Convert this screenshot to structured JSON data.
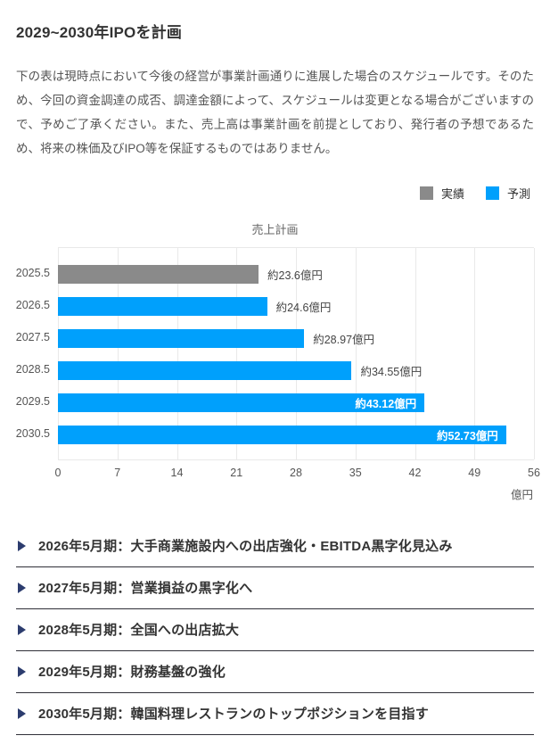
{
  "header": {
    "title": "2029~2030年IPOを計画"
  },
  "intro": {
    "text": "下の表は現時点において今後の経営が事業計画通りに進展した場合のスケジュールです。そのため、今回の資金調達の成否、調達金額によって、スケジュールは変更となる場合がございますので、予めご了承ください。また、売上高は事業計画を前提としており、発行者の予想であるため、将来の株価及びIPO等を保証するものではありません。"
  },
  "chart_data": {
    "type": "bar",
    "orientation": "horizontal",
    "title": "売上計画",
    "categories": [
      "2025.5",
      "2026.5",
      "2027.5",
      "2028.5",
      "2029.5",
      "2030.5"
    ],
    "bars": [
      {
        "category": "2025.5",
        "value": 23.6,
        "label": "約23.6億円",
        "series": "実績",
        "label_position": "outside"
      },
      {
        "category": "2026.5",
        "value": 24.6,
        "label": "約24.6億円",
        "series": "予測",
        "label_position": "outside"
      },
      {
        "category": "2027.5",
        "value": 28.97,
        "label": "約28.97億円",
        "series": "予測",
        "label_position": "outside"
      },
      {
        "category": "2028.5",
        "value": 34.55,
        "label": "約34.55億円",
        "series": "予測",
        "label_position": "outside"
      },
      {
        "category": "2029.5",
        "value": 43.12,
        "label": "約43.12億円",
        "series": "予測",
        "label_position": "inside"
      },
      {
        "category": "2030.5",
        "value": 52.73,
        "label": "約52.73億円",
        "series": "予測",
        "label_position": "inside"
      }
    ],
    "xlim": [
      0,
      56
    ],
    "x_ticks": [
      0,
      7,
      14,
      21,
      28,
      35,
      42,
      49,
      56
    ],
    "x_unit": "億円",
    "grid": true,
    "legend_position": "top-right",
    "legend": [
      {
        "label": "実績",
        "color": "#8a8a8a"
      },
      {
        "label": "予測",
        "color": "#00a0fc"
      }
    ],
    "series_colors": {
      "実績": "#8a8a8a",
      "予測": "#00a0fc"
    }
  },
  "milestones": {
    "items": [
      {
        "text": "2026年5月期：大手商業施設内への出店強化・EBITDA黒字化見込み"
      },
      {
        "text": "2027年5月期：営業損益の黒字化へ"
      },
      {
        "text": "2028年5月期：全国への出店拡大"
      },
      {
        "text": "2029年5月期：財務基盤の強化"
      },
      {
        "text": "2030年5月期：韓国料理レストランのトップポジションを目指す"
      }
    ]
  }
}
